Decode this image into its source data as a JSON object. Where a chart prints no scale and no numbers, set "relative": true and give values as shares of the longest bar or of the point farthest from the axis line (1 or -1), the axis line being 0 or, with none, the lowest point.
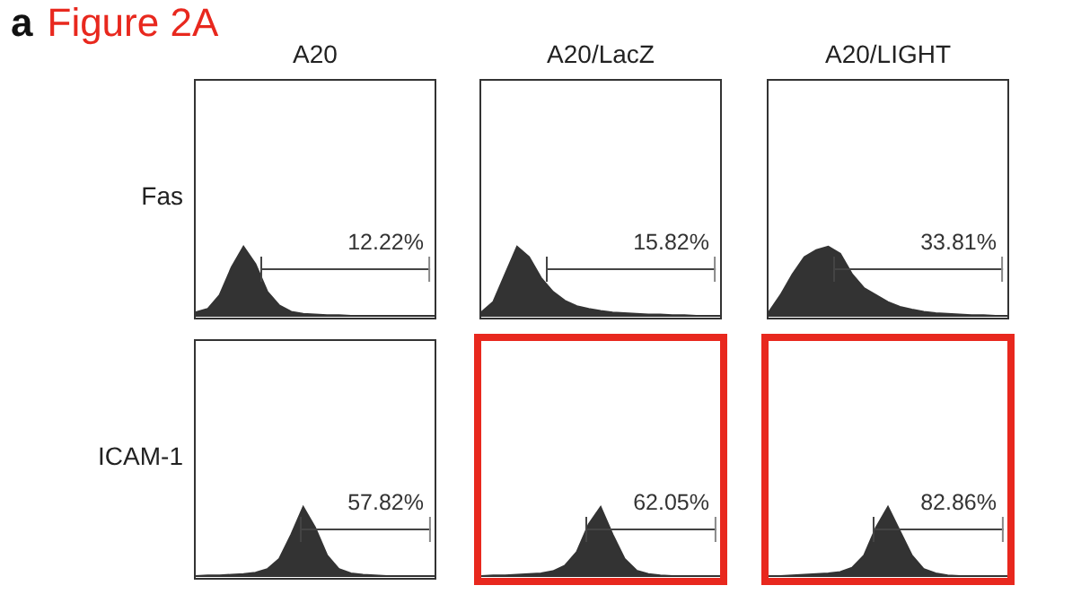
{
  "chart_data": [
    {
      "type": "area",
      "title": "A20",
      "ylabel": "Fas",
      "annotations": [
        "a",
        "Figure 2A",
        "12.22%"
      ],
      "relative": true,
      "categories": [
        null,
        null,
        null,
        null,
        null,
        null,
        null,
        null,
        null,
        null,
        null,
        null,
        null,
        null,
        null,
        null,
        null,
        null,
        null,
        null,
        null
      ],
      "series": [
        {
          "color": "#333333",
          "values": [
            0.05,
            0.1,
            0.3,
            0.7,
            1,
            0.75,
            0.35,
            0.15,
            0.06,
            0.03,
            0.02,
            0.01,
            0.01,
            0,
            0,
            0,
            0,
            0,
            0,
            0,
            0
          ]
        }
      ]
    },
    {
      "type": "area",
      "title": "A20/LacZ",
      "annotations": [
        "15.82%"
      ],
      "relative": true,
      "categories": [
        null,
        null,
        null,
        null,
        null,
        null,
        null,
        null,
        null,
        null,
        null,
        null,
        null,
        null,
        null,
        null,
        null,
        null,
        null,
        null,
        null
      ],
      "series": [
        {
          "color": "#333333",
          "values": [
            0.05,
            0.2,
            0.6,
            1,
            0.85,
            0.55,
            0.35,
            0.22,
            0.14,
            0.1,
            0.07,
            0.05,
            0.04,
            0.03,
            0.02,
            0.02,
            0.01,
            0.01,
            0,
            0,
            0
          ]
        }
      ]
    },
    {
      "type": "area",
      "title": "A20/LIGHT",
      "annotations": [
        "33.81%"
      ],
      "relative": true,
      "categories": [
        null,
        null,
        null,
        null,
        null,
        null,
        null,
        null,
        null,
        null,
        null,
        null,
        null,
        null,
        null,
        null,
        null,
        null,
        null,
        null,
        null
      ],
      "series": [
        {
          "color": "#333333",
          "values": [
            0.05,
            0.3,
            0.6,
            0.85,
            0.95,
            1,
            0.9,
            0.6,
            0.4,
            0.3,
            0.2,
            0.13,
            0.09,
            0.06,
            0.04,
            0.03,
            0.02,
            0.01,
            0.01,
            0,
            0
          ]
        }
      ]
    },
    {
      "type": "area",
      "ylabel": "ICAM-1",
      "annotations": [
        "57.82%"
      ],
      "relative": true,
      "categories": [
        null,
        null,
        null,
        null,
        null,
        null,
        null,
        null,
        null,
        null,
        null,
        null,
        null,
        null,
        null,
        null,
        null,
        null,
        null,
        null,
        null
      ],
      "series": [
        {
          "color": "#333333",
          "values": [
            0,
            0.01,
            0.01,
            0.02,
            0.03,
            0.05,
            0.1,
            0.25,
            0.6,
            1,
            0.7,
            0.3,
            0.1,
            0.04,
            0.02,
            0.01,
            0,
            0,
            0,
            0,
            0
          ]
        }
      ]
    },
    {
      "type": "area",
      "annotations": [
        "62.05%"
      ],
      "relative": true,
      "categories": [
        null,
        null,
        null,
        null,
        null,
        null,
        null,
        null,
        null,
        null,
        null,
        null,
        null,
        null,
        null,
        null,
        null,
        null,
        null,
        null,
        null
      ],
      "series": [
        {
          "color": "#333333",
          "values": [
            0,
            0.01,
            0.01,
            0.02,
            0.03,
            0.04,
            0.07,
            0.15,
            0.35,
            0.75,
            1,
            0.6,
            0.25,
            0.08,
            0.03,
            0.01,
            0,
            0,
            0,
            0,
            0
          ]
        }
      ]
    },
    {
      "type": "area",
      "annotations": [
        "82.86%"
      ],
      "relative": true,
      "categories": [
        null,
        null,
        null,
        null,
        null,
        null,
        null,
        null,
        null,
        null,
        null,
        null,
        null,
        null,
        null,
        null,
        null,
        null,
        null,
        null,
        null
      ],
      "series": [
        {
          "color": "#333333",
          "values": [
            0,
            0,
            0.01,
            0.02,
            0.03,
            0.04,
            0.06,
            0.12,
            0.3,
            0.7,
            1,
            0.65,
            0.3,
            0.1,
            0.04,
            0.01,
            0,
            0,
            0,
            0,
            0
          ]
        }
      ]
    }
  ]
}
